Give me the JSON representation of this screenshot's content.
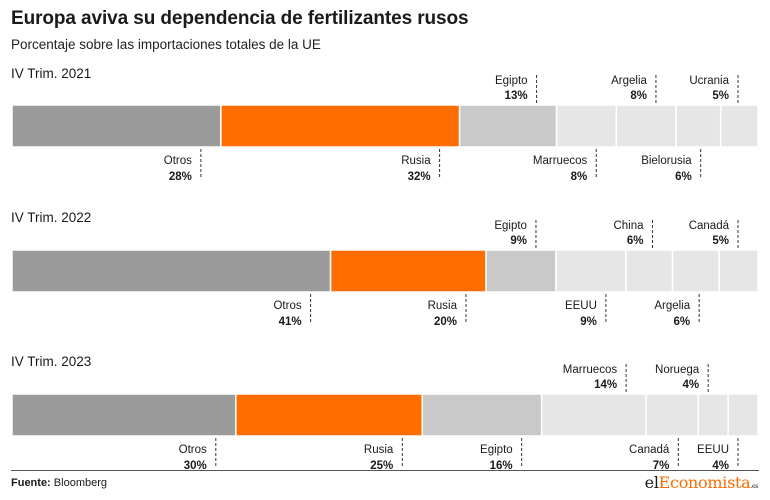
{
  "header": {
    "title": "Europa aviva su dependencia de fertilizantes rusos",
    "subtitle": "Porcentaje sobre las importaciones totales de la UE"
  },
  "footer": {
    "source_label": "Fuente:",
    "source_value": "Bloomberg",
    "logo_part1": "el",
    "logo_part2": "Economista",
    "logo_part3": ".es"
  },
  "colors": {
    "otros": "#9b9b9b",
    "rusia": "#ff6c00",
    "third": "#c9c9c9",
    "rest": "#e6e6e6"
  },
  "chart_data": [
    {
      "type": "bar",
      "stacked": true,
      "orientation": "horizontal",
      "title": "IV Trim. 2021",
      "unit": "%",
      "categories": [
        "Otros",
        "Rusia",
        "Egipto",
        "Marruecos",
        "Argelia",
        "Bielorusia",
        "Ucrania"
      ],
      "values": [
        28,
        32,
        13,
        8,
        8,
        6,
        5
      ],
      "labels": [
        "28%",
        "32%",
        "13%",
        "8%",
        "8%",
        "6%",
        "5%"
      ]
    },
    {
      "type": "bar",
      "stacked": true,
      "orientation": "horizontal",
      "title": "IV Trim. 2022",
      "unit": "%",
      "categories": [
        "Otros",
        "Rusia",
        "Egipto",
        "EEUU",
        "China",
        "Argelia",
        "Canadá"
      ],
      "values": [
        41,
        20,
        9,
        9,
        6,
        6,
        5
      ],
      "labels": [
        "41%",
        "20%",
        "9%",
        "9%",
        "6%",
        "6%",
        "5%"
      ]
    },
    {
      "type": "bar",
      "stacked": true,
      "orientation": "horizontal",
      "title": "IV Trim. 2023",
      "unit": "%",
      "categories": [
        "Otros",
        "Rusia",
        "Egipto",
        "Marruecos",
        "Canadá",
        "Noruega",
        "EEUU"
      ],
      "values": [
        30,
        25,
        16,
        14,
        7,
        4,
        4
      ],
      "labels": [
        "30%",
        "25%",
        "16%",
        "14%",
        "7%",
        "4%",
        "4%"
      ]
    }
  ]
}
